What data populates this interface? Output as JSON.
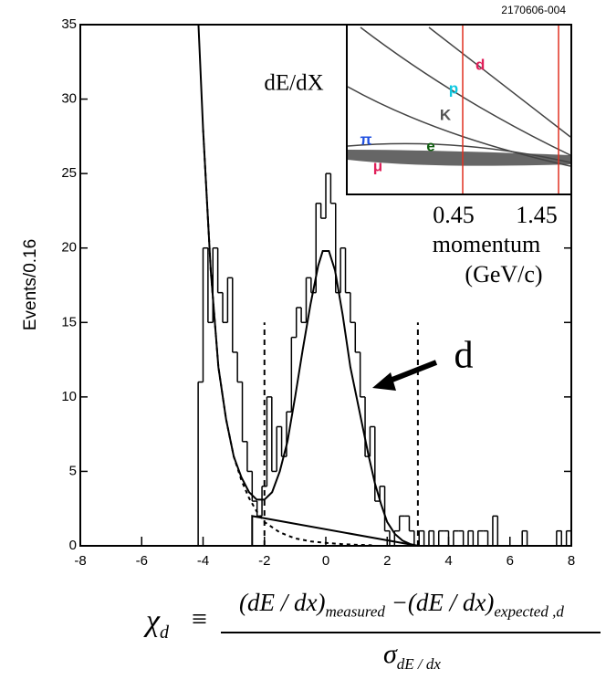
{
  "chart_data": {
    "type": "histogram",
    "ylabel": "Events/0.16",
    "xlim": [
      -8,
      8
    ],
    "ylim": [
      0,
      35
    ],
    "xticks": [
      -8,
      -6,
      -4,
      -2,
      0,
      2,
      4,
      6,
      8
    ],
    "yticks": [
      0,
      5,
      10,
      15,
      20,
      25,
      30,
      35
    ],
    "color": "#000000",
    "bins": [
      -4.16,
      -4.0,
      -3.84,
      -3.68,
      -3.52,
      -3.36,
      -3.2,
      -3.04,
      -2.88,
      -2.72,
      -2.56,
      -2.4,
      -2.24,
      -2.08,
      -1.92,
      -1.76,
      -1.6,
      -1.44,
      -1.28,
      -1.12,
      -0.96,
      -0.8,
      -0.64,
      -0.48,
      -0.32,
      -0.16,
      0,
      0.16,
      0.32,
      0.48,
      0.64,
      0.8,
      0.96,
      1.12,
      1.28,
      1.44,
      1.6,
      1.76,
      1.92,
      2.08,
      2.24,
      2.4,
      2.56,
      2.72,
      2.88,
      3.04,
      3.2,
      3.36,
      3.52,
      3.68,
      3.84,
      4.0,
      4.16,
      4.32,
      4.48,
      4.64,
      4.8,
      4.96,
      5.12,
      5.28,
      5.44,
      5.6,
      5.76,
      5.92,
      6.08,
      6.24,
      6.4,
      6.56,
      6.72,
      6.88,
      7.04,
      7.2,
      7.36,
      7.52,
      7.68,
      7.84,
      8.0
    ],
    "values": [
      11,
      20,
      15,
      20,
      17,
      15,
      18,
      13,
      11,
      7,
      5,
      3,
      2,
      4,
      10,
      5,
      8,
      6,
      9,
      14,
      16,
      15,
      18,
      17,
      23,
      22,
      25,
      23,
      17,
      20,
      17,
      15,
      13,
      10,
      6,
      8,
      3,
      4,
      1,
      0,
      1,
      2,
      2,
      1,
      0,
      1,
      0,
      1,
      0,
      1,
      1,
      0,
      1,
      1,
      0,
      1,
      0,
      1,
      1,
      0,
      2,
      0,
      0,
      0,
      0,
      0,
      1,
      0,
      0,
      0,
      0,
      0,
      0,
      1,
      0,
      1
    ],
    "curves": [
      {
        "style": "solid",
        "x": [
          -4.15,
          -4.0,
          -3.75,
          -3.5,
          -3.25,
          -3.0,
          -2.75,
          -2.5,
          -2.25,
          -2.0,
          -1.75,
          -1.5,
          -1.25,
          -1.0,
          -0.75,
          -0.5,
          -0.25,
          -0.1,
          0.1,
          0.3,
          0.55,
          0.8,
          1.0,
          1.2,
          1.4,
          1.6,
          1.8,
          2.0,
          2.25,
          2.5,
          2.75,
          3.0
        ],
        "y": [
          35,
          28,
          18.5,
          12,
          8.5,
          6,
          4.6,
          3.6,
          3.1,
          3.1,
          3.6,
          5,
          7,
          10,
          13.2,
          16.2,
          18.8,
          19.8,
          19.8,
          18.5,
          15.5,
          12,
          10,
          8,
          6,
          4.2,
          2.8,
          1.6,
          0.8,
          0.35,
          0.12,
          0
        ]
      },
      {
        "style": "dashed",
        "x": [
          -4.0,
          -3.75,
          -3.5,
          -3.25,
          -3.0,
          -2.75,
          -2.5,
          -2.25,
          -2.0,
          -1.5,
          -1.0,
          -0.5,
          0.0,
          0.5,
          1.0,
          1.5
        ],
        "y": [
          28,
          18.5,
          12,
          8.5,
          6,
          4.4,
          3.2,
          2.3,
          1.6,
          0.9,
          0.5,
          0.3,
          0.2,
          0.12,
          0.07,
          0.04
        ]
      },
      {
        "style": "solid",
        "x": [
          -2.4,
          -2.4,
          3.0
        ],
        "y": [
          0,
          2,
          0
        ]
      }
    ],
    "cut_lines": [
      -2,
      3
    ],
    "cut_height": 15,
    "annotation": "d",
    "inset": {
      "code": "2170606-004",
      "ylabel": "dE/dX",
      "particles": [
        "d",
        "p",
        "K",
        "e",
        "π",
        "μ"
      ],
      "xticks": [
        0.45,
        1.45
      ],
      "xlabel": "momentum",
      "xunit": "(GeV/c)"
    },
    "formula": {
      "lhs": "χ",
      "lhs_sub": "d",
      "equiv": "≡",
      "num_a": "(dE / dx)",
      "num_a_sub": "measured",
      "num_b": "−(dE / dx)",
      "num_b_sub": "expected ,d",
      "den": "σ",
      "den_sub": "dE / dx"
    }
  }
}
